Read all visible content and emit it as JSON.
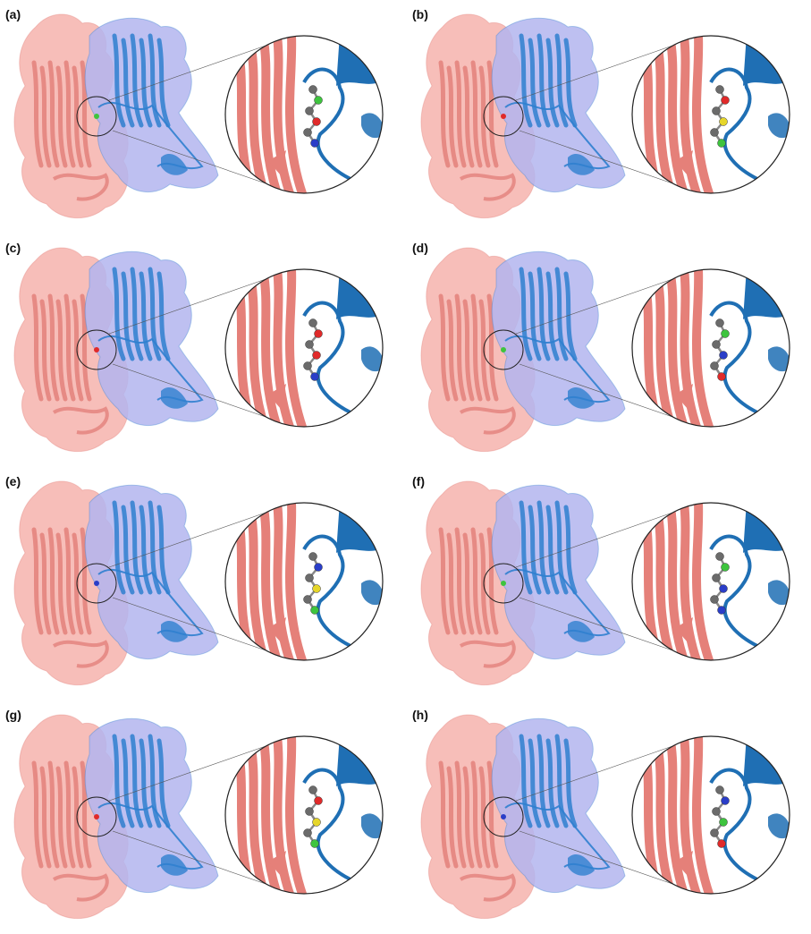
{
  "figure": {
    "panels": [
      {
        "label": "(a)"
      },
      {
        "label": "(b)"
      },
      {
        "label": "(c)"
      },
      {
        "label": "(d)"
      },
      {
        "label": "(e)"
      },
      {
        "label": "(f)"
      },
      {
        "label": "(g)"
      },
      {
        "label": "(h)"
      }
    ]
  },
  "colors": {
    "chain_a_surface": "#f6b3ad",
    "chain_a_cartoon": "#e07873",
    "chain_b_surface": "#b3b5ee",
    "chain_b_cartoon": "#2f7fcf",
    "zoom_ribbon_blue": "#1f6fb4",
    "zoom_ribbon_red": "#e58079",
    "atom_carbon": "#6b6b6b",
    "atom_nitrogen": "#2a3ec8",
    "atom_oxygen": "#e02a2a",
    "atom_chlorine": "#3ec43e",
    "atom_sulfur": "#e6d62a",
    "outline": "#222222"
  }
}
